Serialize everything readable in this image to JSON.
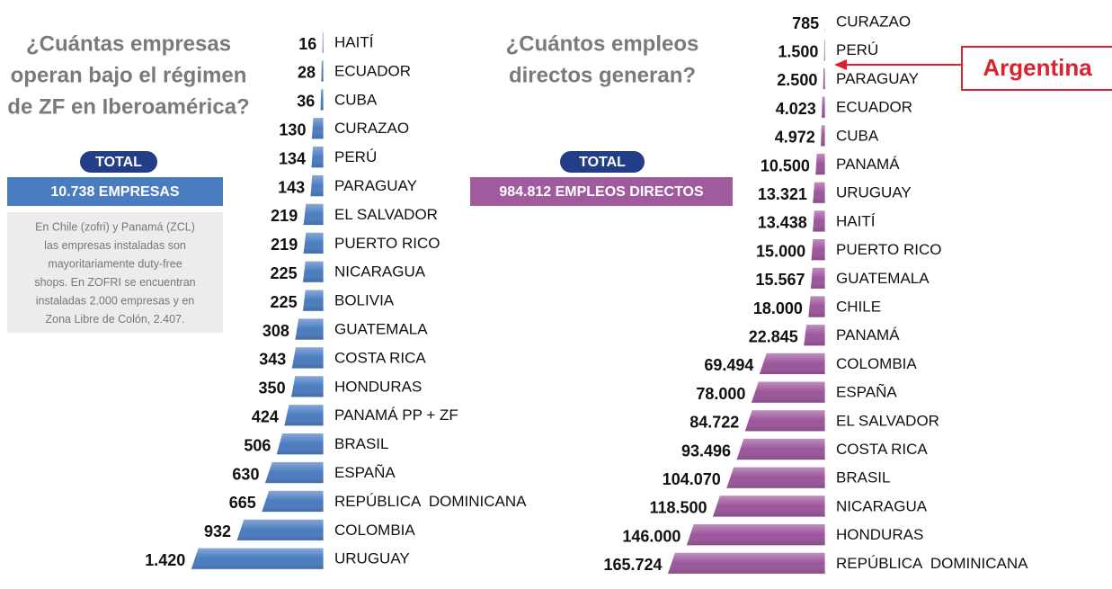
{
  "chart_data": [
    {
      "type": "bar",
      "title": [
        "¿Cuántas empresas",
        "operan bajo el régimen",
        "de ZF en Iberoamérica?"
      ],
      "total_badge": "TOTAL",
      "total": "10.738 EMPRESAS",
      "note": [
        "En Chile (zofri) y Panamá (ZCL)",
        "las empresas instaladas son",
        "mayoritariamente duty-free",
        "shops. En ZOFRI se encuentran",
        "instaladas 2.000 empresas y en",
        "Zona Libre de Colón, 2.407."
      ],
      "categories": [
        "HAITÍ",
        "ECUADOR",
        "CUBA",
        "CURAZAO",
        "PERÚ",
        "PARAGUAY",
        "EL SALVADOR",
        "PUERTO RICO",
        "NICARAGUA",
        "BOLIVIA",
        "GUATEMALA",
        "COSTA RICA",
        "HONDURAS",
        "PANAMÁ PP + ZF",
        "BRASIL",
        "ESPAÑA",
        "REPÚBLICA  DOMINICANA",
        "COLOMBIA",
        "URUGUAY"
      ],
      "values": [
        16,
        28,
        36,
        130,
        134,
        143,
        219,
        219,
        225,
        225,
        308,
        343,
        350,
        424,
        506,
        630,
        665,
        932,
        1420
      ],
      "value_labels": [
        "16",
        "28",
        "36",
        "130",
        "134",
        "143",
        "219",
        "219",
        "225",
        "225",
        "308",
        "343",
        "350",
        "424",
        "506",
        "630",
        "665",
        "932",
        "1.420"
      ],
      "color": "#4a7cc0",
      "xlim": [
        0,
        1500
      ]
    },
    {
      "type": "bar",
      "title": [
        "¿Cuántos empleos",
        "directos generan?"
      ],
      "total_badge": "TOTAL",
      "total": "984.812 EMPLEOS DIRECTOS",
      "annotation": "Argentina",
      "categories": [
        "CURAZAO",
        "PERÚ",
        "PARAGUAY",
        "ECUADOR",
        "CUBA",
        "PANAMÁ",
        "URUGUAY",
        "HAITÍ",
        "PUERTO RICO",
        "GUATEMALA",
        "CHILE",
        "PANAMÁ",
        "COLOMBIA",
        "ESPAÑA",
        "EL SALVADOR",
        "COSTA RICA",
        "BRASIL",
        "NICARAGUA",
        "HONDURAS",
        "REPÚBLICA  DOMINICANA"
      ],
      "values": [
        785,
        1500,
        2500,
        4023,
        4972,
        10500,
        13321,
        13438,
        15000,
        15567,
        18000,
        22845,
        69494,
        78000,
        84722,
        93496,
        104070,
        118500,
        146000,
        165724
      ],
      "value_labels": [
        "785",
        "1.500",
        "2.500",
        "4.023",
        "4.972",
        "10.500",
        "13.321",
        "13.438",
        "15.000",
        "15.567",
        "18.000",
        "22.845",
        "69.494",
        "78.000",
        "84.722",
        "93.496",
        "104.070",
        "118.500",
        "146.000",
        "165.724"
      ],
      "color": "#9b569b",
      "xlim": [
        0,
        170000
      ]
    }
  ]
}
